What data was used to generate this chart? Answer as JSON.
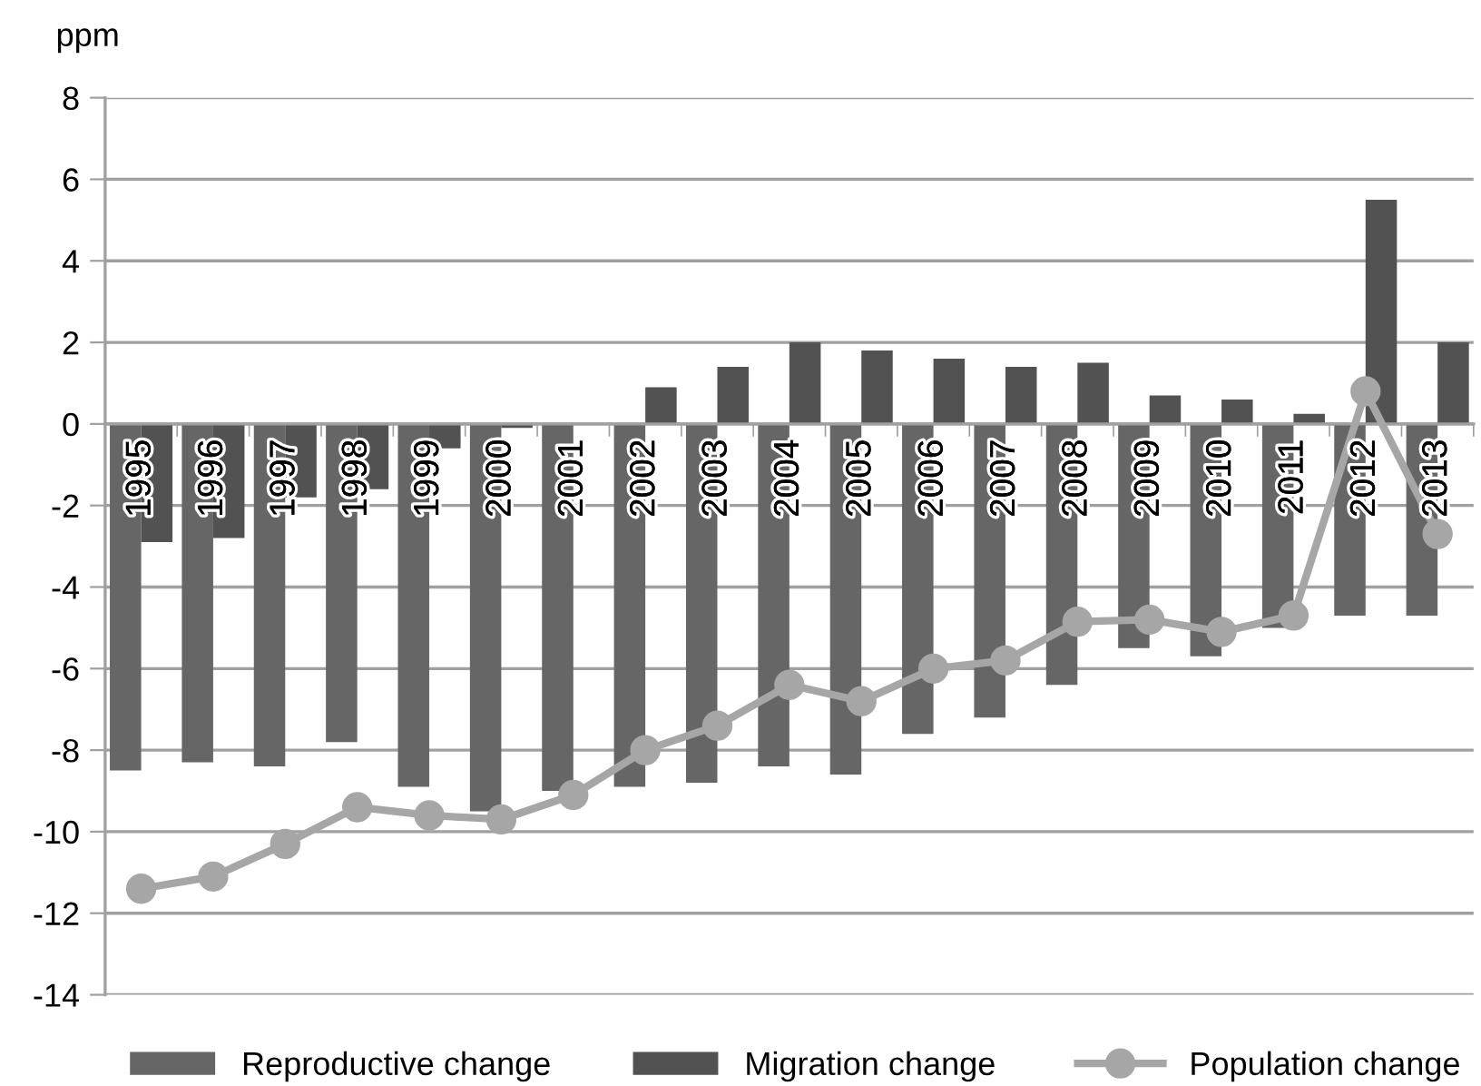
{
  "chart_data": {
    "type": "bar",
    "ylabel": "ppm",
    "categories": [
      "1995",
      "1996",
      "1997",
      "1998",
      "1999",
      "2000",
      "2001",
      "2002",
      "2003",
      "2004",
      "2005",
      "2006",
      "2007",
      "2008",
      "2009",
      "2010",
      "2011",
      "2012",
      "2013"
    ],
    "series": [
      {
        "name": "Reproductive change",
        "color": "#666666",
        "values": [
          -8.5,
          -8.3,
          -8.4,
          -7.8,
          -8.9,
          -9.5,
          -9.0,
          -8.9,
          -8.8,
          -8.4,
          -8.6,
          -7.6,
          -7.2,
          -6.4,
          -5.5,
          -5.7,
          -5.0,
          -4.7,
          -4.7
        ]
      },
      {
        "name": "Migration change",
        "color": "#525252",
        "values": [
          -2.9,
          -2.8,
          -1.8,
          -1.6,
          -0.6,
          -0.1,
          0,
          0.9,
          1.4,
          2.0,
          1.8,
          1.6,
          1.4,
          1.5,
          0.7,
          0.6,
          0.25,
          5.5,
          2.0
        ]
      },
      {
        "name": "Population change",
        "type": "line",
        "color": "#a6a6a6",
        "marker": "circle",
        "values": [
          -11.4,
          -11.1,
          -10.3,
          -9.4,
          -9.6,
          -9.7,
          -9.1,
          -8.0,
          -7.4,
          -6.4,
          -6.8,
          -6.0,
          -5.8,
          -4.85,
          -4.8,
          -5.1,
          -4.7,
          0.8,
          -2.7
        ]
      }
    ],
    "ylim": [
      -14,
      8
    ],
    "yticks": [
      -14,
      -12,
      -10,
      -8,
      -6,
      -4,
      -2,
      0,
      2,
      4,
      6,
      8
    ],
    "grid": "y",
    "legend": "bottom"
  }
}
